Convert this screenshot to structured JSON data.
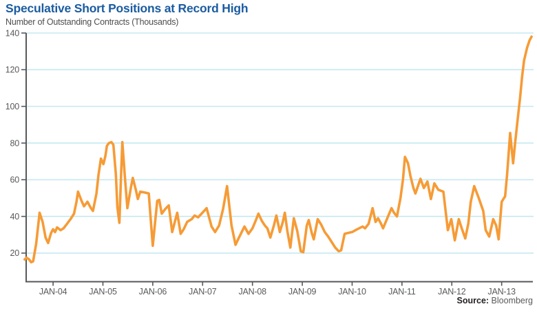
{
  "header": {
    "title": "Speculative Short Positions at Record High",
    "subtitle": "Number of Outstanding Contracts (Thousands)"
  },
  "footer": {
    "source_label": "Source:",
    "source_value": "Bloomberg"
  },
  "chart_data": {
    "type": "line",
    "title": "Speculative Short Positions at Record High",
    "ylabel": "Number of Outstanding Contracts (Thousands)",
    "legend": "none",
    "grid": "horizontal",
    "xlim": [
      2003.46,
      2013.64
    ],
    "ylim": [
      4.4,
      140
    ],
    "y_ticks": [
      20,
      40,
      60,
      80,
      100,
      120,
      140
    ],
    "x_ticks": [
      {
        "year": 2004,
        "label": "JAN-04"
      },
      {
        "year": 2005,
        "label": "JAN-05"
      },
      {
        "year": 2006,
        "label": "JAN-06"
      },
      {
        "year": 2007,
        "label": "JAN-07"
      },
      {
        "year": 2008,
        "label": "JAN-08"
      },
      {
        "year": 2009,
        "label": "JAN-09"
      },
      {
        "year": 2010,
        "label": "JAN-10"
      },
      {
        "year": 2011,
        "label": "JAN-11"
      },
      {
        "year": 2012,
        "label": "JAN-12"
      },
      {
        "year": 2013,
        "label": "JAN-13"
      }
    ],
    "colors": {
      "line": "#F69B36",
      "grid": "#C5E8F0",
      "axis": "#55575A",
      "tick_label": "#58595B",
      "title": "#1B5CA0"
    },
    "points": [
      [
        2003.43,
        16.5
      ],
      [
        2003.47,
        17.5
      ],
      [
        2003.52,
        16.5
      ],
      [
        2003.56,
        15
      ],
      [
        2003.6,
        15.5
      ],
      [
        2003.66,
        25
      ],
      [
        2003.73,
        42
      ],
      [
        2003.79,
        37
      ],
      [
        2003.85,
        28.5
      ],
      [
        2003.9,
        25.5
      ],
      [
        2003.96,
        31
      ],
      [
        2004.0,
        33
      ],
      [
        2004.04,
        31.5
      ],
      [
        2004.08,
        34
      ],
      [
        2004.15,
        32.5
      ],
      [
        2004.21,
        33.5
      ],
      [
        2004.28,
        36
      ],
      [
        2004.35,
        38.5
      ],
      [
        2004.42,
        41.5
      ],
      [
        2004.47,
        48
      ],
      [
        2004.5,
        53.5
      ],
      [
        2004.57,
        48.5
      ],
      [
        2004.62,
        45.5
      ],
      [
        2004.69,
        48
      ],
      [
        2004.76,
        44.5
      ],
      [
        2004.8,
        43
      ],
      [
        2004.87,
        52.5
      ],
      [
        2004.91,
        62.5
      ],
      [
        2004.96,
        71.5
      ],
      [
        2005.01,
        68.5
      ],
      [
        2005.05,
        73
      ],
      [
        2005.08,
        78.5
      ],
      [
        2005.12,
        80
      ],
      [
        2005.17,
        80.5
      ],
      [
        2005.21,
        79
      ],
      [
        2005.26,
        63
      ],
      [
        2005.29,
        45
      ],
      [
        2005.33,
        36.5
      ],
      [
        2005.36,
        60
      ],
      [
        2005.39,
        80.5
      ],
      [
        2005.44,
        62
      ],
      [
        2005.49,
        44.5
      ],
      [
        2005.56,
        55.5
      ],
      [
        2005.6,
        61
      ],
      [
        2005.66,
        54.5
      ],
      [
        2005.7,
        49.5
      ],
      [
        2005.75,
        53.5
      ],
      [
        2005.84,
        53
      ],
      [
        2005.92,
        52.5
      ],
      [
        2005.96,
        38
      ],
      [
        2006.0,
        24
      ],
      [
        2006.09,
        48.5
      ],
      [
        2006.13,
        49
      ],
      [
        2006.18,
        41.5
      ],
      [
        2006.25,
        44
      ],
      [
        2006.32,
        46
      ],
      [
        2006.39,
        31.5
      ],
      [
        2006.49,
        42
      ],
      [
        2006.56,
        30.5
      ],
      [
        2006.62,
        33
      ],
      [
        2006.69,
        37
      ],
      [
        2006.78,
        38.5
      ],
      [
        2006.84,
        40.5
      ],
      [
        2006.91,
        39.5
      ],
      [
        2006.98,
        41.5
      ],
      [
        2007.08,
        44.5
      ],
      [
        2007.18,
        34.5
      ],
      [
        2007.25,
        31.5
      ],
      [
        2007.33,
        35
      ],
      [
        2007.41,
        44
      ],
      [
        2007.49,
        56.5
      ],
      [
        2007.58,
        35
      ],
      [
        2007.66,
        24.5
      ],
      [
        2007.73,
        28.5
      ],
      [
        2007.84,
        34.5
      ],
      [
        2007.92,
        30.5
      ],
      [
        2008.0,
        33.5
      ],
      [
        2008.07,
        38
      ],
      [
        2008.12,
        41.5
      ],
      [
        2008.19,
        37.5
      ],
      [
        2008.25,
        35
      ],
      [
        2008.3,
        33.5
      ],
      [
        2008.36,
        28.5
      ],
      [
        2008.43,
        35
      ],
      [
        2008.48,
        40.5
      ],
      [
        2008.55,
        31.5
      ],
      [
        2008.61,
        37
      ],
      [
        2008.65,
        42
      ],
      [
        2008.7,
        32
      ],
      [
        2008.76,
        23
      ],
      [
        2008.83,
        39
      ],
      [
        2008.9,
        32
      ],
      [
        2008.97,
        21
      ],
      [
        2009.02,
        20.5
      ],
      [
        2009.09,
        35
      ],
      [
        2009.13,
        38
      ],
      [
        2009.19,
        31
      ],
      [
        2009.23,
        27.5
      ],
      [
        2009.31,
        38.5
      ],
      [
        2009.38,
        35.5
      ],
      [
        2009.45,
        31.5
      ],
      [
        2009.52,
        29
      ],
      [
        2009.59,
        26
      ],
      [
        2009.66,
        23
      ],
      [
        2009.73,
        21
      ],
      [
        2009.78,
        21.5
      ],
      [
        2009.85,
        30.5
      ],
      [
        2009.92,
        31
      ],
      [
        2010.0,
        31.5
      ],
      [
        2010.1,
        33
      ],
      [
        2010.21,
        34.5
      ],
      [
        2010.26,
        33.5
      ],
      [
        2010.33,
        36
      ],
      [
        2010.41,
        44.5
      ],
      [
        2010.47,
        37
      ],
      [
        2010.52,
        39
      ],
      [
        2010.58,
        36
      ],
      [
        2010.62,
        33.5
      ],
      [
        2010.69,
        38
      ],
      [
        2010.79,
        44.5
      ],
      [
        2010.84,
        42
      ],
      [
        2010.9,
        40
      ],
      [
        2010.97,
        50
      ],
      [
        2011.02,
        60
      ],
      [
        2011.06,
        72.5
      ],
      [
        2011.12,
        69
      ],
      [
        2011.17,
        62
      ],
      [
        2011.23,
        55.5
      ],
      [
        2011.27,
        52.5
      ],
      [
        2011.37,
        60.5
      ],
      [
        2011.44,
        55.5
      ],
      [
        2011.51,
        59
      ],
      [
        2011.58,
        49.5
      ],
      [
        2011.65,
        58
      ],
      [
        2011.73,
        54.5
      ],
      [
        2011.83,
        53.5
      ],
      [
        2011.92,
        32.5
      ],
      [
        2011.99,
        38.5
      ],
      [
        2012.06,
        27
      ],
      [
        2012.14,
        38.5
      ],
      [
        2012.2,
        33.5
      ],
      [
        2012.27,
        28
      ],
      [
        2012.33,
        36
      ],
      [
        2012.38,
        48
      ],
      [
        2012.45,
        56.5
      ],
      [
        2012.54,
        50
      ],
      [
        2012.63,
        43
      ],
      [
        2012.68,
        32.5
      ],
      [
        2012.75,
        29
      ],
      [
        2012.83,
        38.5
      ],
      [
        2012.89,
        35
      ],
      [
        2012.94,
        27.5
      ],
      [
        2013.0,
        48
      ],
      [
        2013.07,
        51
      ],
      [
        2013.11,
        63
      ],
      [
        2013.17,
        85.5
      ],
      [
        2013.23,
        69
      ],
      [
        2013.27,
        80
      ],
      [
        2013.32,
        92.5
      ],
      [
        2013.37,
        105
      ],
      [
        2013.41,
        116
      ],
      [
        2013.45,
        125
      ],
      [
        2013.51,
        132
      ],
      [
        2013.56,
        136
      ],
      [
        2013.6,
        138
      ]
    ]
  }
}
